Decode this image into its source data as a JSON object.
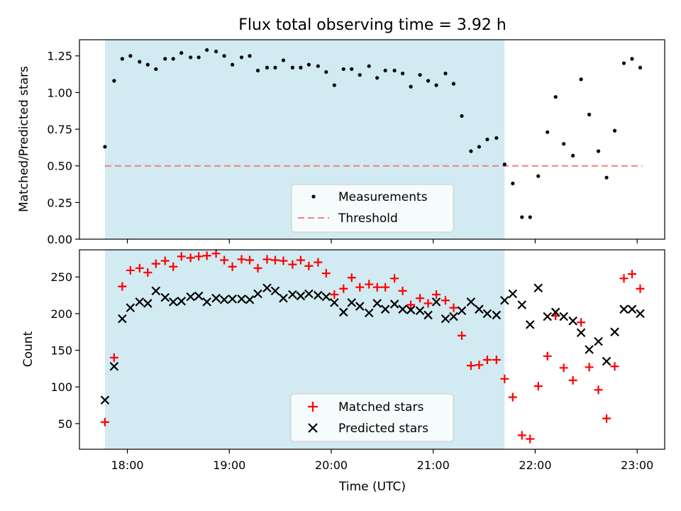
{
  "chart_data": {
    "type": "scatter",
    "title": "Flux total observing time = 3.92 h",
    "xlabel": "Time (UTC)",
    "x_unit": "hours since 00:00 UTC",
    "xlim": [
      17.53,
      23.27
    ],
    "x_ticks": [
      {
        "value": 18,
        "label": "18:00"
      },
      {
        "value": 19,
        "label": "19:00"
      },
      {
        "value": 20,
        "label": "20:00"
      },
      {
        "value": 21,
        "label": "21:00"
      },
      {
        "value": 22,
        "label": "22:00"
      },
      {
        "value": 23,
        "label": "23:00"
      }
    ],
    "shaded_interval": {
      "x_start": 17.78,
      "x_end": 21.7,
      "color": "#add8e6"
    },
    "panels": [
      {
        "ylabel": "Matched/Predicted stars",
        "ylim": [
          0,
          1.36
        ],
        "y_ticks": [
          0,
          0.25,
          0.5,
          0.75,
          1.0,
          1.25
        ],
        "y_tick_labels": [
          "0.00",
          "0.25",
          "0.50",
          "0.75",
          "1.00",
          "1.25"
        ],
        "legend_position": "lower-center",
        "threshold": {
          "name": "Threshold",
          "y": 0.5,
          "x_range": [
            17.78,
            23.05
          ],
          "color": "#f08080",
          "style": "dashed"
        },
        "series": [
          {
            "name": "Measurements",
            "marker": "dot",
            "color": "#000000",
            "x": [
              17.78,
              17.87,
              17.95,
              18.03,
              18.12,
              18.2,
              18.28,
              18.37,
              18.45,
              18.53,
              18.62,
              18.7,
              18.78,
              18.87,
              18.95,
              19.03,
              19.12,
              19.2,
              19.28,
              19.37,
              19.45,
              19.53,
              19.62,
              19.7,
              19.78,
              19.87,
              19.95,
              20.03,
              20.12,
              20.2,
              20.28,
              20.37,
              20.45,
              20.53,
              20.62,
              20.7,
              20.78,
              20.87,
              20.95,
              21.03,
              21.12,
              21.2,
              21.28,
              21.37,
              21.45,
              21.53,
              21.62,
              21.7,
              21.78,
              21.87,
              21.95,
              22.03,
              22.12,
              22.2,
              22.28,
              22.37,
              22.45,
              22.53,
              22.62,
              22.7,
              22.78,
              22.87,
              22.95,
              23.03
            ],
            "y": [
              0.63,
              1.08,
              1.23,
              1.25,
              1.21,
              1.19,
              1.16,
              1.23,
              1.23,
              1.27,
              1.24,
              1.24,
              1.29,
              1.28,
              1.25,
              1.19,
              1.24,
              1.25,
              1.15,
              1.17,
              1.17,
              1.22,
              1.17,
              1.17,
              1.19,
              1.18,
              1.14,
              1.05,
              1.16,
              1.16,
              1.12,
              1.18,
              1.1,
              1.15,
              1.15,
              1.13,
              1.04,
              1.12,
              1.08,
              1.05,
              1.13,
              1.06,
              0.84,
              0.6,
              0.63,
              0.68,
              0.69,
              0.51,
              0.38,
              0.15,
              0.15,
              0.43,
              0.73,
              0.97,
              0.65,
              0.57,
              1.09,
              0.85,
              0.6,
              0.42,
              0.74,
              1.2,
              1.23,
              1.17
            ]
          }
        ]
      },
      {
        "ylabel": "Count",
        "ylim": [
          15,
          287
        ],
        "y_ticks": [
          50,
          100,
          150,
          200,
          250
        ],
        "y_tick_labels": [
          "50",
          "100",
          "150",
          "200",
          "250"
        ],
        "legend_position": "lower-center",
        "series": [
          {
            "name": "Matched stars",
            "marker": "plus",
            "color": "#ff0000",
            "x": [
              17.78,
              17.87,
              17.95,
              18.03,
              18.12,
              18.2,
              18.28,
              18.37,
              18.45,
              18.53,
              18.62,
              18.7,
              18.78,
              18.87,
              18.95,
              19.03,
              19.12,
              19.2,
              19.28,
              19.37,
              19.45,
              19.53,
              19.62,
              19.7,
              19.78,
              19.87,
              19.95,
              20.03,
              20.12,
              20.2,
              20.28,
              20.37,
              20.45,
              20.53,
              20.62,
              20.7,
              20.78,
              20.87,
              20.95,
              21.03,
              21.12,
              21.2,
              21.28,
              21.37,
              21.45,
              21.53,
              21.62,
              21.7,
              21.78,
              21.87,
              21.95,
              22.03,
              22.12,
              22.2,
              22.28,
              22.37,
              22.45,
              22.53,
              22.62,
              22.7,
              22.78,
              22.87,
              22.95,
              23.03
            ],
            "y": [
              52,
              140,
              237,
              259,
              262,
              256,
              268,
              272,
              264,
              278,
              276,
              278,
              279,
              282,
              273,
              264,
              274,
              273,
              262,
              274,
              273,
              272,
              267,
              273,
              265,
              270,
              255,
              226,
              234,
              249,
              236,
              240,
              236,
              236,
              248,
              231,
              212,
              221,
              214,
              226,
              218,
              208,
              170,
              129,
              130,
              137,
              137,
              111,
              86,
              34,
              29,
              101,
              142,
              197,
              126,
              109,
              188,
              127,
              96,
              57,
              128,
              248,
              254,
              234
            ]
          },
          {
            "name": "Predicted stars",
            "marker": "x",
            "color": "#000000",
            "x": [
              17.78,
              17.87,
              17.95,
              18.03,
              18.12,
              18.2,
              18.28,
              18.37,
              18.45,
              18.53,
              18.62,
              18.7,
              18.78,
              18.87,
              18.95,
              19.03,
              19.12,
              19.2,
              19.28,
              19.37,
              19.45,
              19.53,
              19.62,
              19.7,
              19.78,
              19.87,
              19.95,
              20.03,
              20.12,
              20.2,
              20.28,
              20.37,
              20.45,
              20.53,
              20.62,
              20.7,
              20.78,
              20.87,
              20.95,
              21.03,
              21.12,
              21.2,
              21.28,
              21.37,
              21.45,
              21.53,
              21.62,
              21.7,
              21.78,
              21.87,
              21.95,
              22.03,
              22.12,
              22.2,
              22.28,
              22.37,
              22.45,
              22.53,
              22.62,
              22.7,
              22.78,
              22.87,
              22.95,
              23.03
            ],
            "y": [
              82,
              128,
              193,
              208,
              216,
              214,
              231,
              222,
              216,
              217,
              223,
              224,
              216,
              221,
              219,
              220,
              220,
              219,
              227,
              235,
              231,
              221,
              226,
              224,
              227,
              225,
              223,
              215,
              202,
              215,
              210,
              201,
              214,
              206,
              213,
              206,
              205,
              204,
              198,
              216,
              193,
              196,
              204,
              216,
              206,
              200,
              198,
              218,
              227,
              212,
              185,
              235,
              196,
              202,
              196,
              190,
              174,
              151,
              162,
              135,
              175,
              206,
              206,
              200
            ]
          }
        ]
      }
    ]
  }
}
